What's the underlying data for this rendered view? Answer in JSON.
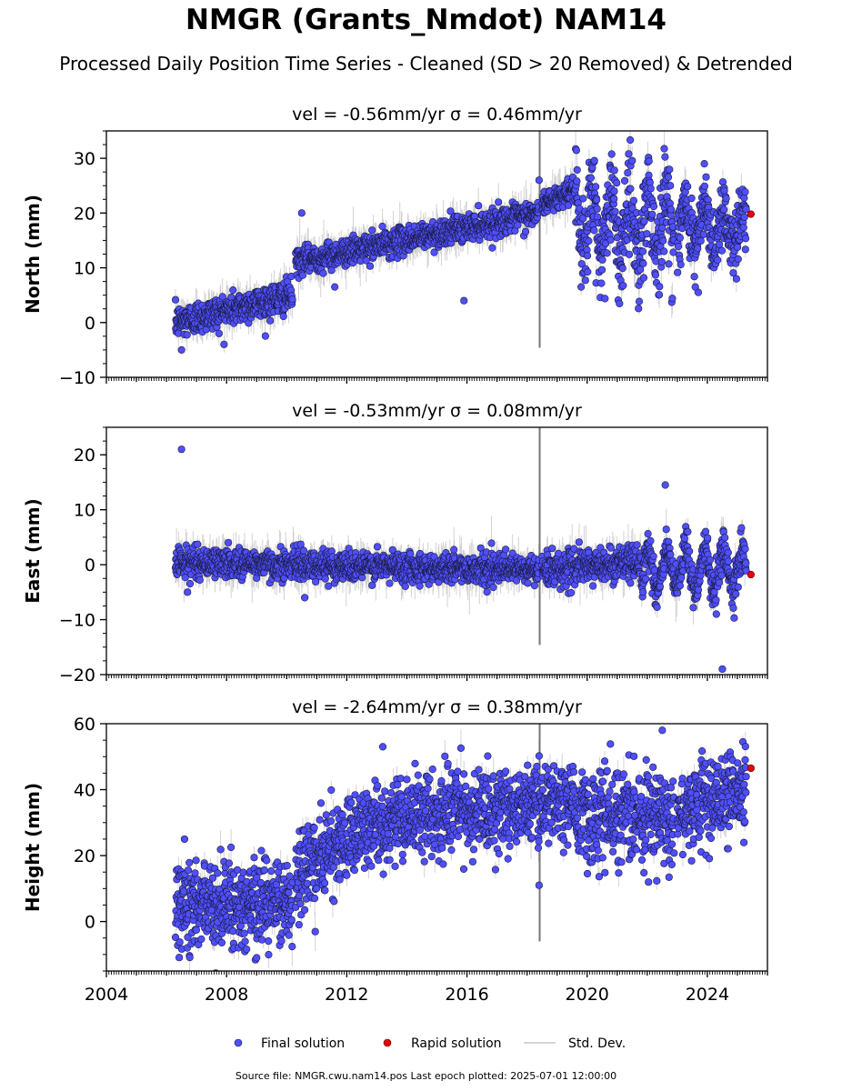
{
  "title": "NMGR (Grants_Nmdot) NAM14",
  "subtitle": "Processed Daily Position Time Series - Cleaned (SD > 20 Removed) & Detrended",
  "source_text": "Source file: NMGR.cwu.nam14.pos  Last epoch plotted: 2025-07-01 12:00:00",
  "legend": {
    "final": "Final solution",
    "rapid": "Rapid solution",
    "std": "Std. Dev."
  },
  "colors": {
    "final": "#4f4ffb",
    "rapid": "#e8000b",
    "std": "#c8c8c8",
    "edge": "#1a1a40"
  },
  "chart_data": [
    {
      "type": "scatter",
      "component": "north",
      "panel_title": "vel = -0.56mm/yr   σ = 0.46mm/yr",
      "ylabel": "North (mm)",
      "xlim": [
        2004,
        2026
      ],
      "ylim": [
        -10,
        35
      ],
      "yticks": [
        -10,
        0,
        10,
        20,
        30
      ],
      "ytick_labels": [
        "−10",
        "0",
        "10",
        "20",
        "30"
      ],
      "x_data_range": [
        2006.3,
        2025.3
      ],
      "trend_segments": [
        {
          "x": [
            2006.3,
            2010.2
          ],
          "y": [
            0,
            5
          ],
          "noise": 1.5
        },
        {
          "x": [
            2010.3,
            2018.4
          ],
          "y": [
            11,
            20
          ],
          "noise": 1.2
        },
        {
          "x": [
            2018.5,
            2019.6
          ],
          "y": [
            21.5,
            24.5
          ],
          "noise": 1.0
        },
        {
          "x": [
            2019.6,
            2022.9
          ],
          "y": [
            18,
            18
          ],
          "noise": 4.5,
          "seasonal_amp": 5.5
        },
        {
          "x": [
            2023.0,
            2025.3
          ],
          "y": [
            18,
            17
          ],
          "noise": 3.0,
          "seasonal_amp": 3.5
        }
      ],
      "outliers": [
        [
          2006.5,
          -5
        ],
        [
          2010.5,
          20
        ],
        [
          2018.4,
          26
        ],
        [
          2023.9,
          29
        ],
        [
          2023.7,
          5.5
        ],
        [
          2023.6,
          6.5
        ],
        [
          2011.6,
          6.5
        ],
        [
          2015.9,
          4
        ]
      ],
      "rapid_points": [
        [
          2025.45,
          19.8
        ]
      ]
    },
    {
      "type": "scatter",
      "component": "east",
      "panel_title": "vel = -0.53mm/yr   σ = 0.08mm/yr",
      "ylabel": "East (mm)",
      "xlim": [
        2004,
        2026
      ],
      "ylim": [
        -20,
        25
      ],
      "yticks": [
        -20,
        -10,
        0,
        10,
        20
      ],
      "ytick_labels": [
        "−20",
        "−10",
        "0",
        "10",
        "20"
      ],
      "x_data_range": [
        2006.3,
        2025.3
      ],
      "trend_segments": [
        {
          "x": [
            2006.3,
            2018.4
          ],
          "y": [
            0.5,
            -1
          ],
          "noise": 1.3
        },
        {
          "x": [
            2018.5,
            2021.8
          ],
          "y": [
            -1,
            0.5
          ],
          "noise": 1.5
        },
        {
          "x": [
            2021.8,
            2025.3
          ],
          "y": [
            -1,
            -1
          ],
          "noise": 1.8,
          "seasonal_amp": 3.5
        }
      ],
      "outliers": [
        [
          2006.5,
          21
        ],
        [
          2022.6,
          14.5
        ],
        [
          2024.5,
          -19
        ],
        [
          2024.3,
          -9
        ],
        [
          2010.6,
          -6
        ],
        [
          2006.7,
          -5
        ]
      ],
      "rapid_points": [
        [
          2025.45,
          -1.8
        ]
      ]
    },
    {
      "type": "scatter",
      "component": "height",
      "panel_title": "vel = -2.64mm/yr   σ = 0.38mm/yr",
      "ylabel": "Height (mm)",
      "xlim": [
        2004,
        2026
      ],
      "ylim": [
        -15,
        60
      ],
      "yticks": [
        0,
        20,
        40,
        60
      ],
      "ytick_labels": [
        "0",
        "20",
        "40",
        "60"
      ],
      "x_data_range": [
        2006.3,
        2025.3
      ],
      "trend_segments": [
        {
          "x": [
            2006.3,
            2010.2
          ],
          "y": [
            5,
            6
          ],
          "noise": 6.5
        },
        {
          "x": [
            2010.3,
            2013.0
          ],
          "y": [
            15,
            30
          ],
          "noise": 6.0
        },
        {
          "x": [
            2013.0,
            2019.6
          ],
          "y": [
            30,
            37
          ],
          "noise": 6.0
        },
        {
          "x": [
            2019.6,
            2022.9
          ],
          "y": [
            32,
            33
          ],
          "noise": 7.0
        },
        {
          "x": [
            2023.0,
            2025.3
          ],
          "y": [
            34,
            40
          ],
          "noise": 6.0
        }
      ],
      "outliers": [
        [
          2018.4,
          11
        ],
        [
          2022.5,
          58
        ],
        [
          2013.2,
          53
        ],
        [
          2006.6,
          25
        ],
        [
          2009.0,
          -11
        ]
      ],
      "rapid_points": [
        [
          2025.45,
          46.5
        ]
      ]
    }
  ]
}
